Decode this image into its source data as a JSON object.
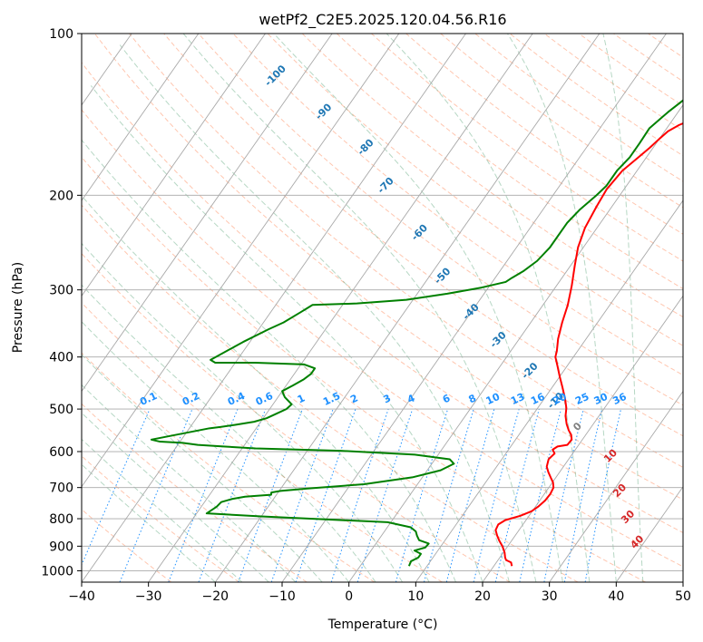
{
  "chart_data": {
    "type": "line",
    "title": "wetPf2_C2E5.2025.120.04.56.R16",
    "xlabel": "Temperature (°C)",
    "ylabel": "Pressure (hPa)",
    "xlim": [
      -40,
      50
    ],
    "ylim": [
      1050,
      100
    ],
    "y_scale": "log",
    "grid": true,
    "x_ticks": [
      -40,
      -30,
      -20,
      -10,
      0,
      10,
      20,
      30,
      40,
      50
    ],
    "y_ticks": [
      100,
      200,
      300,
      400,
      500,
      600,
      700,
      800,
      900,
      1000
    ],
    "colors": {
      "temperature": "#ff0000",
      "dewpoint": "#008000",
      "isotherm": "#a9a9a9",
      "dry_adiabat": "#ffa07a",
      "moist_adiabat": "#2e8b57",
      "mixing_ratio": "#1e90ff",
      "isotherm_label": "#1f77b4",
      "ml_label": "#d62728",
      "zero_label": "#808080"
    },
    "isotherm_labels": [
      "-100",
      "-90",
      "-80",
      "-70",
      "-60",
      "-50",
      "-40",
      "-30",
      "-20",
      "-10",
      "0",
      "10",
      "20",
      "30",
      "40"
    ],
    "mixing_ratio_labels": [
      "0.1",
      "0.2",
      "0.4",
      "0.6",
      "1",
      "1.5",
      "2",
      "3",
      "4",
      "6",
      "8",
      "10",
      "13",
      "16",
      "20",
      "25",
      "30",
      "36"
    ],
    "series": [
      {
        "key": "temperature",
        "values": [
          [
            22.7,
            980
          ],
          [
            22.2,
            965
          ],
          [
            21.2,
            955
          ],
          [
            20.8,
            945
          ],
          [
            20.2,
            925
          ],
          [
            19.2,
            900
          ],
          [
            18.2,
            880
          ],
          [
            17.3,
            860
          ],
          [
            16.5,
            840
          ],
          [
            16.3,
            820
          ],
          [
            16.9,
            805
          ],
          [
            18.7,
            790
          ],
          [
            19.9,
            775
          ],
          [
            20.4,
            760
          ],
          [
            20.8,
            740
          ],
          [
            20.9,
            720
          ],
          [
            20.7,
            700
          ],
          [
            20.1,
            685
          ],
          [
            19.2,
            670
          ],
          [
            18.3,
            655
          ],
          [
            17.5,
            640
          ],
          [
            17.0,
            620
          ],
          [
            17.3,
            605
          ],
          [
            16.6,
            595
          ],
          [
            17.0,
            587
          ],
          [
            18.3,
            583
          ],
          [
            18.4,
            570
          ],
          [
            17.8,
            558
          ],
          [
            17.0,
            548
          ],
          [
            16.0,
            533
          ],
          [
            15.0,
            515
          ],
          [
            14.3,
            498
          ],
          [
            13.1,
            478
          ],
          [
            11.5,
            455
          ],
          [
            10.0,
            435
          ],
          [
            8.5,
            415
          ],
          [
            7.3,
            400
          ],
          [
            6.9,
            390
          ],
          [
            5.8,
            370
          ],
          [
            4.7,
            345
          ],
          [
            3.7,
            320
          ],
          [
            2.3,
            295
          ],
          [
            0.6,
            270
          ],
          [
            -0.8,
            250
          ],
          [
            -1.8,
            230
          ],
          [
            -2.3,
            210
          ],
          [
            -2.6,
            195
          ],
          [
            -2.2,
            180
          ],
          [
            -1.2,
            170
          ],
          [
            -0.5,
            163
          ],
          [
            0.0,
            157
          ],
          [
            0.5,
            152
          ],
          [
            1.5,
            148
          ],
          [
            3.2,
            144
          ],
          [
            5.5,
            140
          ],
          [
            7.8,
            135
          ],
          [
            9.5,
            130
          ],
          [
            10.8,
            125
          ],
          [
            11.4,
            120
          ],
          [
            11.9,
            115
          ],
          [
            12.6,
            110
          ],
          [
            13.4,
            105
          ],
          [
            14.2,
            100
          ]
        ]
      },
      {
        "key": "dewpoint",
        "values": [
          [
            7.3,
            980
          ],
          [
            7.1,
            960
          ],
          [
            7.8,
            945
          ],
          [
            7.8,
            930
          ],
          [
            6.5,
            917
          ],
          [
            7.8,
            905
          ],
          [
            7.9,
            890
          ],
          [
            6.1,
            877
          ],
          [
            5.3,
            860
          ],
          [
            4.7,
            845
          ],
          [
            3.5,
            830
          ],
          [
            -0.5,
            812
          ],
          [
            -10.5,
            802
          ],
          [
            -20.0,
            792
          ],
          [
            -28.5,
            782
          ],
          [
            -27.7,
            760
          ],
          [
            -27.5,
            745
          ],
          [
            -26.2,
            735
          ],
          [
            -24.5,
            728
          ],
          [
            -22.8,
            725
          ],
          [
            -20.8,
            722
          ],
          [
            -21.0,
            715
          ],
          [
            -19.8,
            710
          ],
          [
            -16.0,
            703
          ],
          [
            -8.0,
            690
          ],
          [
            -1.5,
            670
          ],
          [
            2.0,
            650
          ],
          [
            3.3,
            632
          ],
          [
            2.2,
            620
          ],
          [
            -3.5,
            608
          ],
          [
            -15.0,
            598
          ],
          [
            -28.0,
            592
          ],
          [
            -33.0,
            587
          ],
          [
            -37.0,
            583
          ],
          [
            -39.5,
            578
          ],
          [
            -43.0,
            575
          ],
          [
            -44.5,
            570
          ],
          [
            -37.0,
            543
          ],
          [
            -35.5,
            540
          ],
          [
            -33.5,
            535
          ],
          [
            -31.0,
            528
          ],
          [
            -29.5,
            520
          ],
          [
            -28.5,
            510
          ],
          [
            -27.5,
            500
          ],
          [
            -27.2,
            490
          ],
          [
            -29.0,
            475
          ],
          [
            -30.0,
            463
          ],
          [
            -29.0,
            452
          ],
          [
            -28.0,
            440
          ],
          [
            -27.5,
            430
          ],
          [
            -27.5,
            420
          ],
          [
            -29.5,
            413
          ],
          [
            -37.0,
            410
          ],
          [
            -43.0,
            410
          ],
          [
            -44.0,
            405
          ],
          [
            -41.0,
            375
          ],
          [
            -38.5,
            355
          ],
          [
            -37.0,
            345
          ],
          [
            -35.5,
            330
          ],
          [
            -35.0,
            325
          ],
          [
            -34.5,
            320
          ],
          [
            -28.0,
            318
          ],
          [
            -21.0,
            313
          ],
          [
            -15.5,
            305
          ],
          [
            -11.0,
            297
          ],
          [
            -8.0,
            290
          ],
          [
            -7.5,
            285
          ],
          [
            -6.5,
            277
          ],
          [
            -5.5,
            265
          ],
          [
            -5.0,
            250
          ],
          [
            -5.0,
            240
          ],
          [
            -5.0,
            225
          ],
          [
            -4.5,
            213
          ],
          [
            -3.5,
            200
          ],
          [
            -3.0,
            192
          ],
          [
            -3.0,
            180
          ],
          [
            -2.5,
            170
          ],
          [
            -2.5,
            160
          ],
          [
            -2.6,
            150
          ],
          [
            -1.5,
            140
          ],
          [
            0.0,
            130
          ],
          [
            1.0,
            120
          ],
          [
            1.5,
            112
          ],
          [
            2.5,
            105
          ],
          [
            3.5,
            100
          ]
        ]
      }
    ]
  }
}
